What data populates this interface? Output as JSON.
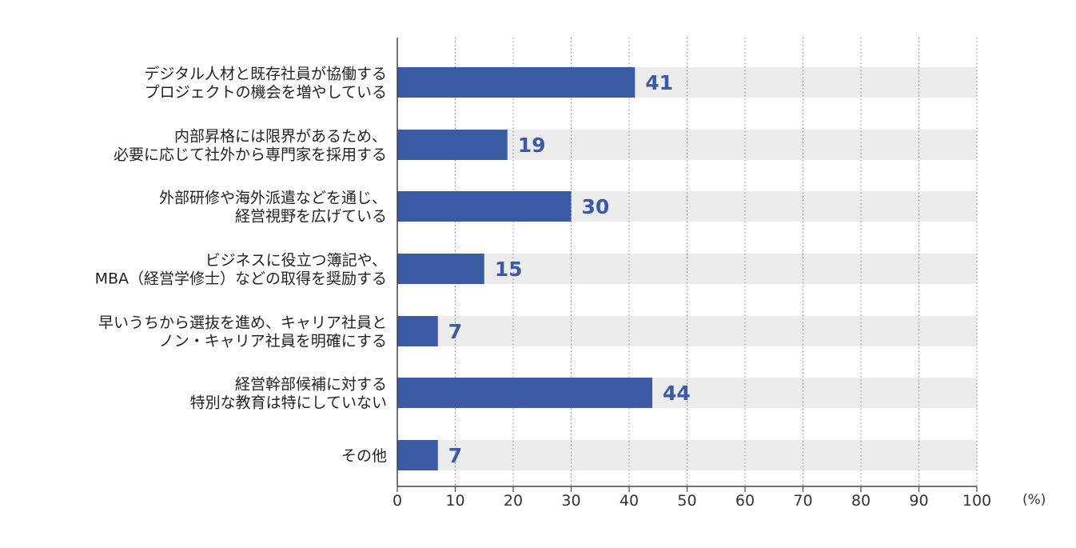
{
  "chart_data": {
    "type": "bar",
    "orientation": "horizontal",
    "categories": [
      [
        "デジタル人材と既存社員が協働する",
        "プロジェクトの機会を増やしている"
      ],
      [
        "内部昇格には限界があるため、",
        "必要に応じて社外から専門家を採用する"
      ],
      [
        "外部研修や海外派遣などを通じ、",
        "経営視野を広げている"
      ],
      [
        "ビジネスに役立つ簿記や、",
        "MBA（経営学修士）などの取得を奨励する"
      ],
      [
        "早いうちから選抜を進め、キャリア社員と",
        "ノン・キャリア社員を明確にする"
      ],
      [
        "経営幹部候補に対する",
        "特別な教育は特にしていない"
      ],
      [
        "その他"
      ]
    ],
    "values": [
      41,
      19,
      30,
      15,
      7,
      44,
      7
    ],
    "value_labels": [
      "41",
      "19",
      "30",
      "15",
      "7",
      "44",
      "7"
    ],
    "xlim": [
      0,
      100
    ],
    "x_ticks": [
      "0",
      "10",
      "20",
      "30",
      "40",
      "50",
      "60",
      "70",
      "80",
      "90",
      "100"
    ],
    "unit": "(%)",
    "grid": "vertical dotted",
    "colors": {
      "bar": "#3a5aa4",
      "track": "#ebebeb",
      "value_text": "#3a5aa4",
      "grid": "#888888",
      "axis": "#444444"
    }
  }
}
